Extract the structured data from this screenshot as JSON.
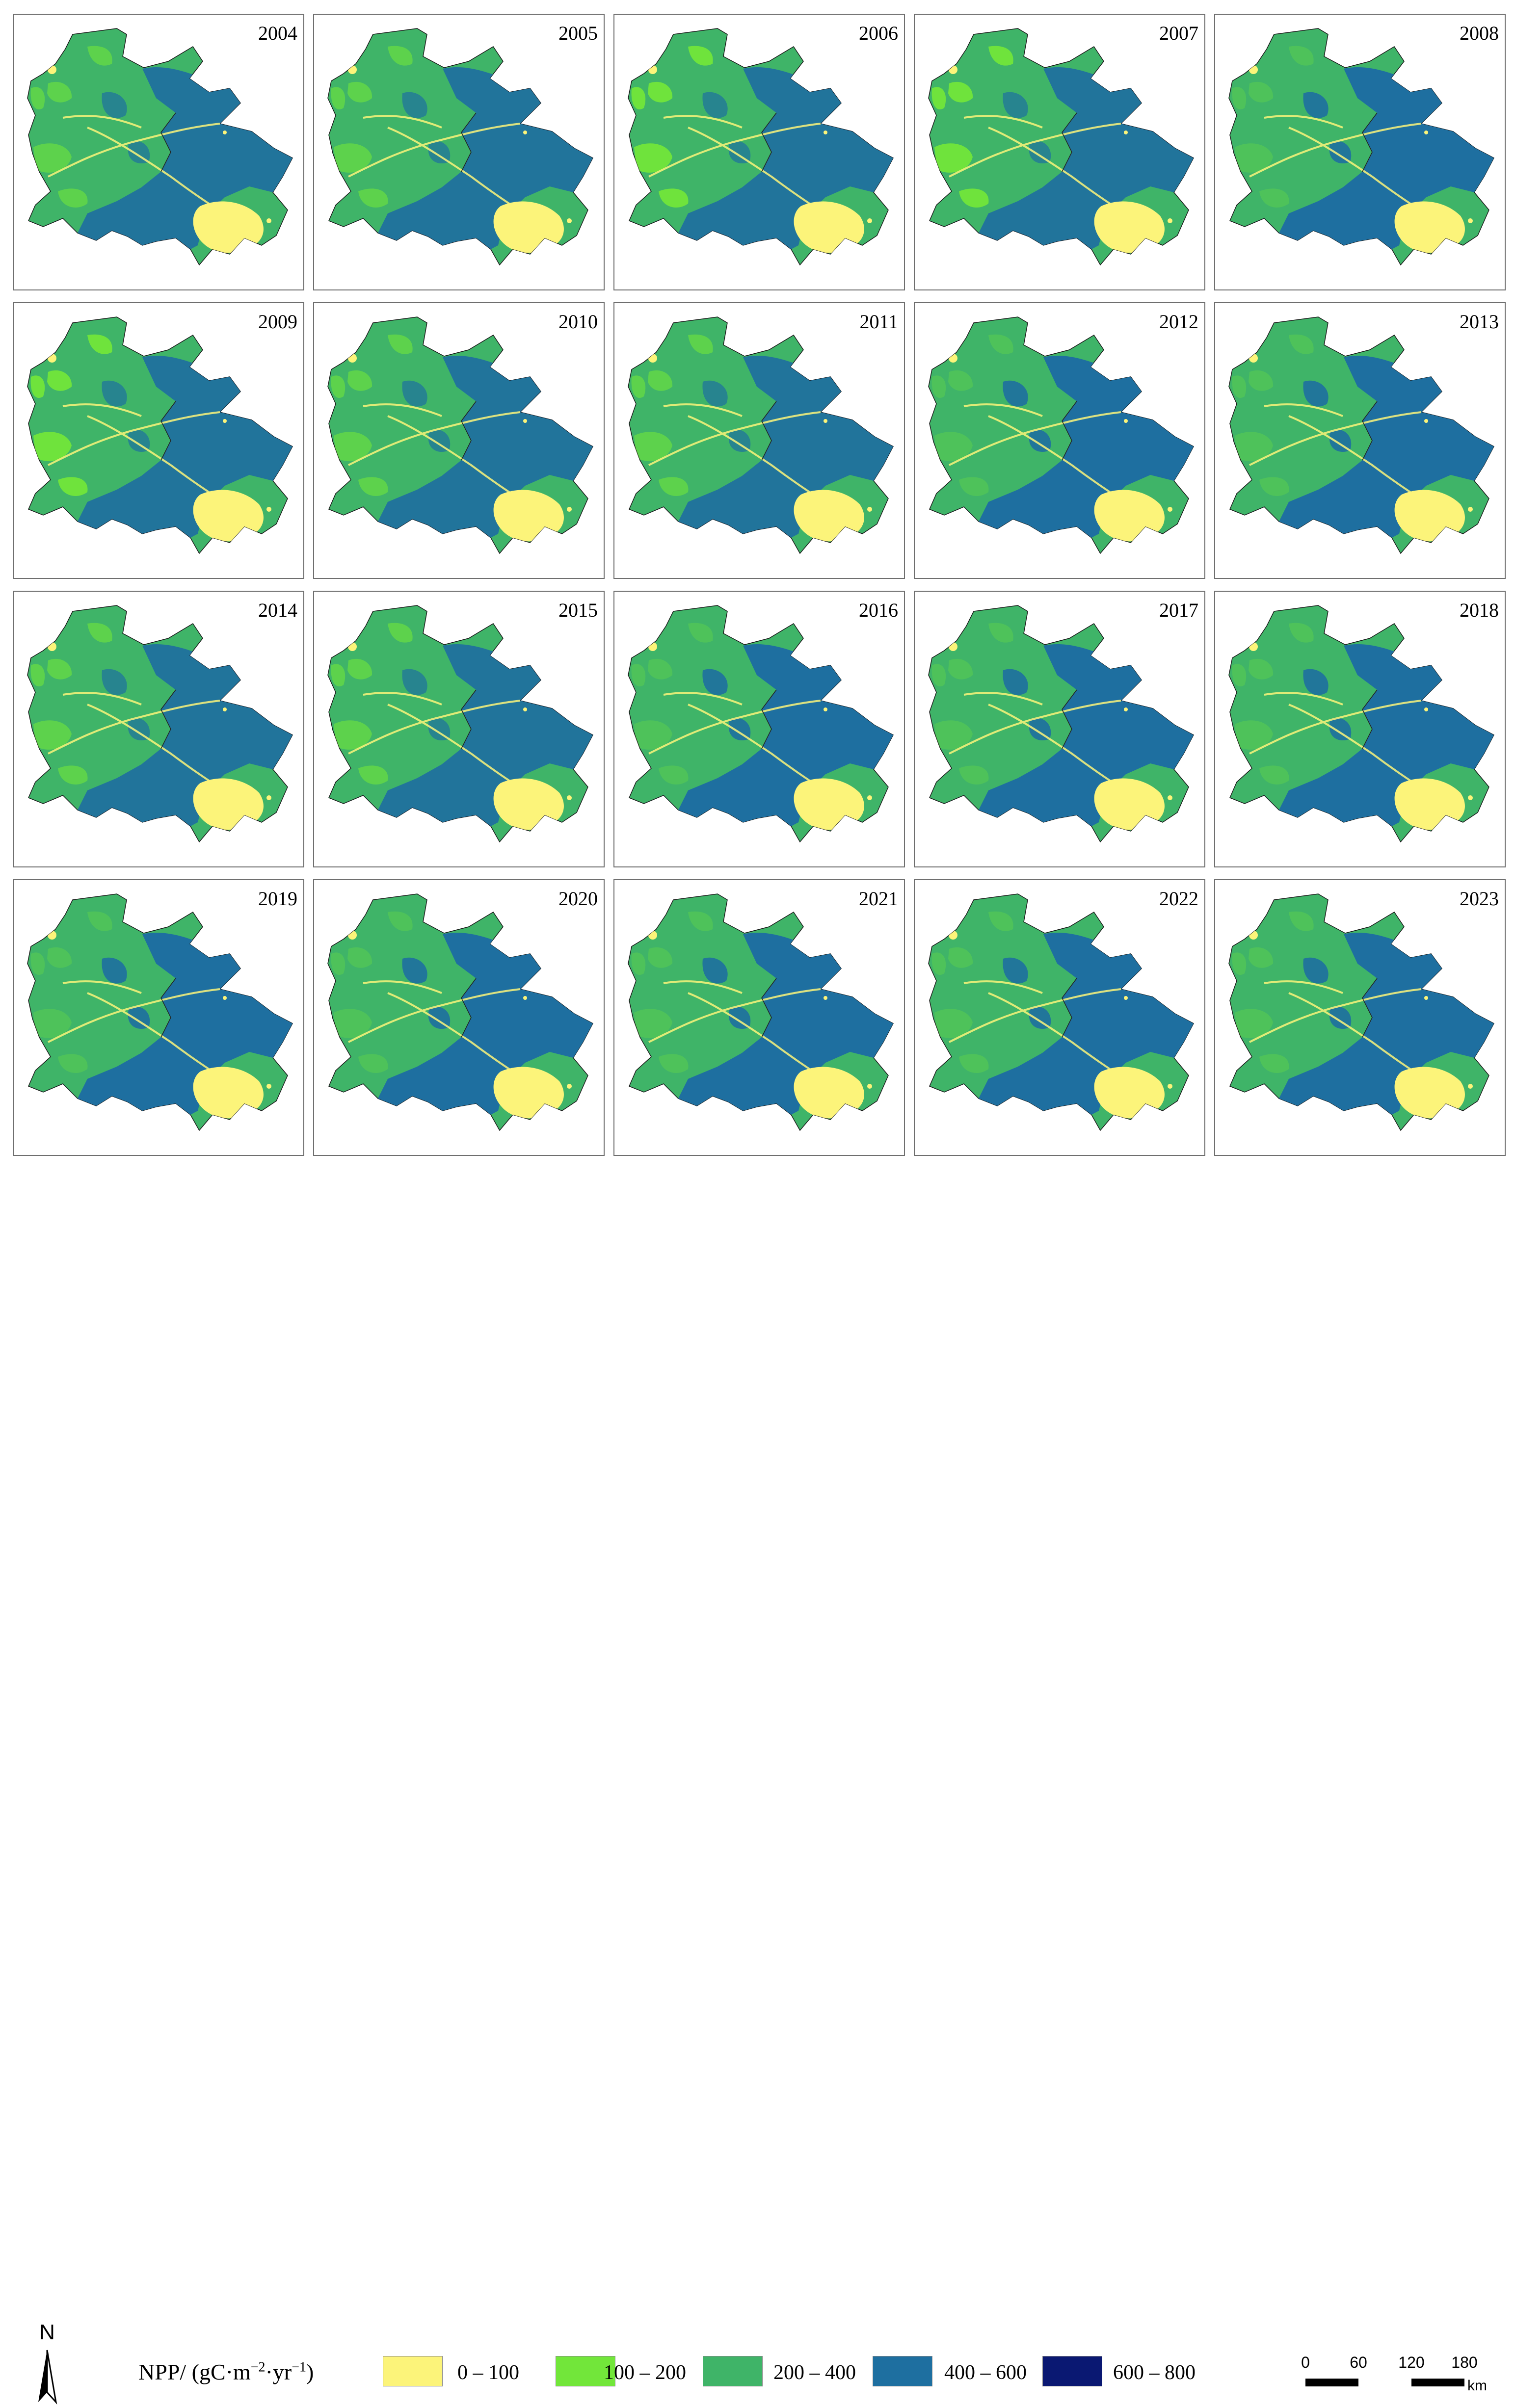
{
  "panels": [
    {
      "year": "2004",
      "variant": 0
    },
    {
      "year": "2005",
      "variant": 0
    },
    {
      "year": "2006",
      "variant": 1
    },
    {
      "year": "2007",
      "variant": 1
    },
    {
      "year": "2008",
      "variant": 2
    },
    {
      "year": "2009",
      "variant": 1
    },
    {
      "year": "2010",
      "variant": 0
    },
    {
      "year": "2011",
      "variant": 0
    },
    {
      "year": "2012",
      "variant": 2
    },
    {
      "year": "2013",
      "variant": 2
    },
    {
      "year": "2014",
      "variant": 0
    },
    {
      "year": "2015",
      "variant": 0
    },
    {
      "year": "2016",
      "variant": 2
    },
    {
      "year": "2017",
      "variant": 2
    },
    {
      "year": "2018",
      "variant": 2
    },
    {
      "year": "2019",
      "variant": 2
    },
    {
      "year": "2020",
      "variant": 2
    },
    {
      "year": "2021",
      "variant": 2
    },
    {
      "year": "2022",
      "variant": 2
    },
    {
      "year": "2023",
      "variant": 2
    }
  ],
  "legend": {
    "title_main": "NPP/ (gC·m",
    "title_exp1": "−2",
    "title_mid": "·yr",
    "title_exp2": "−1",
    "title_end": ")",
    "classes": [
      {
        "label": "0 – 100",
        "color": "#fcf47a"
      },
      {
        "label": "100 – 200",
        "color": "#72e63a"
      },
      {
        "label": "200 – 400",
        "color": "#3fb468"
      },
      {
        "label": "400 – 600",
        "color": "#1e6fa0"
      },
      {
        "label": "600 – 800",
        "color": "#0a1872"
      }
    ]
  },
  "north_label": "N",
  "scale_bar": {
    "ticks": [
      "0",
      "60",
      "120",
      "180"
    ],
    "unit": "km"
  }
}
